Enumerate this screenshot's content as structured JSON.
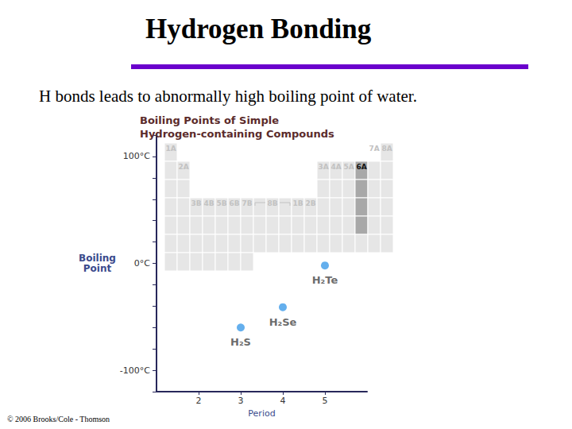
{
  "slide": {
    "title": "Hydrogen Bonding",
    "subtitle": "H bonds leads to abnormally high boiling point of water.",
    "copyright": "© 2006 Brooks/Cole - Thomson"
  },
  "periodic_table": {
    "groups": [
      "1A",
      "2A",
      "3B",
      "4B",
      "5B",
      "6B",
      "7B",
      "8B",
      "1B",
      "2B",
      "3A",
      "4A",
      "5A",
      "6A",
      "7A",
      "8A"
    ],
    "highlight": "6A"
  },
  "chart_data": {
    "type": "scatter",
    "title": "Boiling Points of Simple\nHydrogen-containing Compounds",
    "x": [
      3,
      4,
      5
    ],
    "values": [
      -60,
      -41,
      -2
    ],
    "point_labels": [
      "H₂S",
      "H₂Se",
      "H₂Te"
    ],
    "color": "#3d9be9",
    "marker": "circle",
    "xlabel": "Period",
    "ylabel": "Boiling\nPoint",
    "xlim": [
      1,
      6
    ],
    "xticks": [
      2,
      3,
      4,
      5
    ],
    "ylim": [
      -120,
      120
    ],
    "yticks": [
      {
        "value": -100,
        "label": "-100°C"
      },
      {
        "value": 0,
        "label": "0°C"
      },
      {
        "value": 100,
        "label": "100°C"
      }
    ],
    "grid": false
  }
}
